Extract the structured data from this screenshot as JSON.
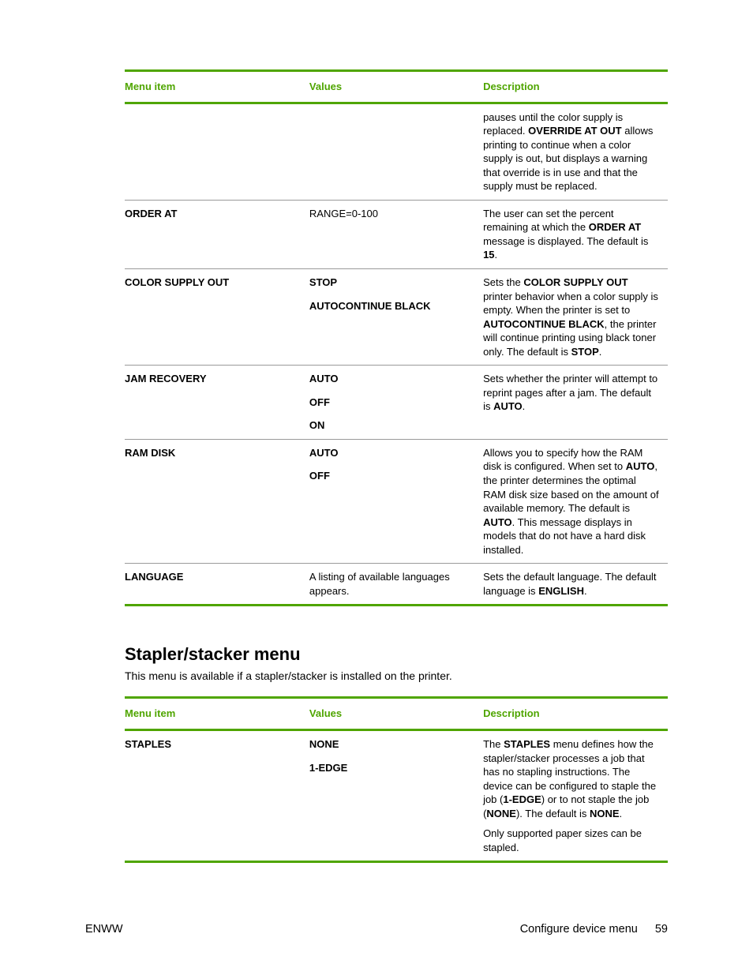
{
  "colors": {
    "accent": "#4fa500",
    "rule": "#9a9a9a",
    "text": "#000000",
    "background": "#ffffff"
  },
  "typography": {
    "body_font": "Arial, Helvetica, sans-serif",
    "body_size_pt": 10,
    "heading_size_pt": 16
  },
  "table1": {
    "headers": {
      "item": "Menu item",
      "values": "Values",
      "description": "Description"
    },
    "rows": [
      {
        "item": "",
        "values": [],
        "description_segments": [
          {
            "t": "pauses until the color supply is replaced. "
          },
          {
            "t": "OVERRIDE AT OUT",
            "b": true
          },
          {
            "t": " allows printing to continue when a color supply is out, but displays a warning that override is in use and that the supply must be replaced."
          }
        ]
      },
      {
        "item": "ORDER AT",
        "values_plain": "RANGE=0-100",
        "description_segments": [
          {
            "t": "The user can set the percent remaining at which the "
          },
          {
            "t": "ORDER AT",
            "b": true
          },
          {
            "t": " message is displayed. The default is "
          },
          {
            "t": "15",
            "b": true
          },
          {
            "t": "."
          }
        ]
      },
      {
        "item": "COLOR SUPPLY OUT",
        "values": [
          "STOP",
          "AUTOCONTINUE BLACK"
        ],
        "values_bold": true,
        "description_segments": [
          {
            "t": "Sets the "
          },
          {
            "t": "COLOR SUPPLY OUT",
            "b": true
          },
          {
            "t": " printer behavior when a color supply is empty. When the printer is set to "
          },
          {
            "t": "AUTOCONTINUE BLACK",
            "b": true
          },
          {
            "t": ", the printer will continue printing using black toner only. The default is "
          },
          {
            "t": "STOP",
            "b": true
          },
          {
            "t": "."
          }
        ]
      },
      {
        "item": "JAM RECOVERY",
        "values": [
          "AUTO",
          "OFF",
          "ON"
        ],
        "values_bold": true,
        "description_segments": [
          {
            "t": "Sets whether the printer will attempt to reprint pages after a jam. The default is "
          },
          {
            "t": "AUTO",
            "b": true
          },
          {
            "t": "."
          }
        ]
      },
      {
        "item": "RAM DISK",
        "values": [
          "AUTO",
          "OFF"
        ],
        "values_bold": true,
        "description_segments": [
          {
            "t": "Allows you to specify how the RAM disk is configured. When set to "
          },
          {
            "t": "AUTO",
            "b": true
          },
          {
            "t": ", the printer determines the optimal RAM disk size based on the amount of available memory. The default is "
          },
          {
            "t": "AUTO",
            "b": true
          },
          {
            "t": ". This message displays in models that do not have a hard disk installed."
          }
        ]
      },
      {
        "item": "LANGUAGE",
        "values_plain": "A listing of available languages appears.",
        "description_segments": [
          {
            "t": "Sets the default language. The default language is "
          },
          {
            "t": "ENGLISH",
            "b": true
          },
          {
            "t": "."
          }
        ]
      }
    ]
  },
  "section_heading": "Stapler/stacker menu",
  "section_intro": "This menu is available if a stapler/stacker is installed on the printer.",
  "table2": {
    "headers": {
      "item": "Menu item",
      "values": "Values",
      "description": "Description"
    },
    "rows": [
      {
        "item": "STAPLES",
        "values": [
          "NONE",
          "1-EDGE"
        ],
        "values_bold": true,
        "description_paragraphs": [
          [
            {
              "t": "The "
            },
            {
              "t": "STAPLES",
              "b": true
            },
            {
              "t": " menu defines how the stapler/stacker processes a job that has no stapling instructions. The device can be configured to staple the job ("
            },
            {
              "t": "1-EDGE",
              "b": true
            },
            {
              "t": ") or to not staple the job ("
            },
            {
              "t": "NONE",
              "b": true
            },
            {
              "t": "). The default is "
            },
            {
              "t": "NONE",
              "b": true
            },
            {
              "t": "."
            }
          ],
          [
            {
              "t": "Only supported paper sizes can be stapled."
            }
          ]
        ]
      }
    ]
  },
  "footer": {
    "left": "ENWW",
    "right_title": "Configure device menu",
    "page_number": "59"
  }
}
